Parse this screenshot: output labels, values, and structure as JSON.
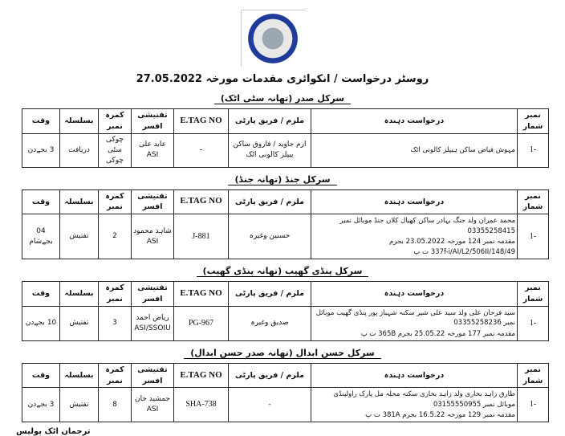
{
  "logo": {
    "text": "DISTRICT POLICE ATTOCK",
    "icon": "police-seal-logo",
    "colors": [
      "#c8262d",
      "#1f3c9a"
    ]
  },
  "title": "روسٹر درخواست / انکوائری مقدمات مورخہ 27.05.2022",
  "columns": [
    "نمبر شمار",
    "درخواست دہندہ",
    "ملزم / فریق پارٹی",
    "E.TAG NO",
    "تفتیشی افسر",
    "کمرہ نمبر",
    "بسلسلہ",
    "وقت"
  ],
  "sections": [
    {
      "heading": "سرکل صدر (تھانہ سٹی اٹک)",
      "rows": [
        {
          "serial": "1-",
          "applicant": [
            "مہوش فیاض ساکن ہیپلز کالونی اٹک"
          ],
          "accused": "ارم جاوید / فاروق ساکن پیپلز کالونی اٹک",
          "etag": "-",
          "officer": "عابد علی ASI",
          "room": "چوکی سٹی چوکی",
          "purpose": "دریافت",
          "time": "3 بجےدن"
        }
      ]
    },
    {
      "heading": "سرکل جنڈ (تھانہ جنڈ)",
      "rows": [
        {
          "serial": "1-",
          "applicant": [
            "محمد عمران ولد جنگ بہادر ساکن کھیال کلاں جنڈ موبائل نمبر 03355258415",
            "مقدمہ نمبر 124 مورخہ 23.05.2022 بجرم",
            "337f-i/AI/L2/506II/148/49 ت پ"
          ],
          "accused": "حسنین وغیرہ",
          "etag": "J-881",
          "officer": "شاہد محمود ASI",
          "room": "2",
          "purpose": "تفتیش",
          "time": "04 بجےشام"
        }
      ]
    },
    {
      "heading": "سرکل پنڈی گھیب (تھانہ پنڈی گھیب)",
      "rows": [
        {
          "serial": "1-",
          "applicant": [
            "سید فرحان علی ولد سید علی شیر سکنہ شہباز پور پنڈی گھیب موبائل نمبر 03355258236",
            "مقدمہ نمبر 177 مورخہ 25.05.22 بجرم 365B ت پ"
          ],
          "accused": "صدیق وغیرہ",
          "etag": "PG-967",
          "officer": "ریاض احمد ASI/SSOIU",
          "room": "3",
          "purpose": "تفتیش",
          "time": "10 بجےدن"
        }
      ]
    },
    {
      "heading": "سرکل حسن ابدال (تھانہ صدر حسن ابدال)",
      "rows": [
        {
          "serial": "1-",
          "applicant": [
            "طارق زاہد بخاری ولد زاہد بخاری سکنہ محلہ مل پارک راولپنڈی موبائل نمبر 03155550955",
            "مقدمہ نمبر 129 مورخہ 16.5.22 بجرم 381A ت پ"
          ],
          "accused": "-",
          "etag": "SHA-738",
          "officer": "جمشید خان ASI",
          "room": "8",
          "purpose": "تفتیش",
          "time": "3 بجےدن"
        }
      ]
    }
  ],
  "footer": "ترجمان اٹک پولیس"
}
